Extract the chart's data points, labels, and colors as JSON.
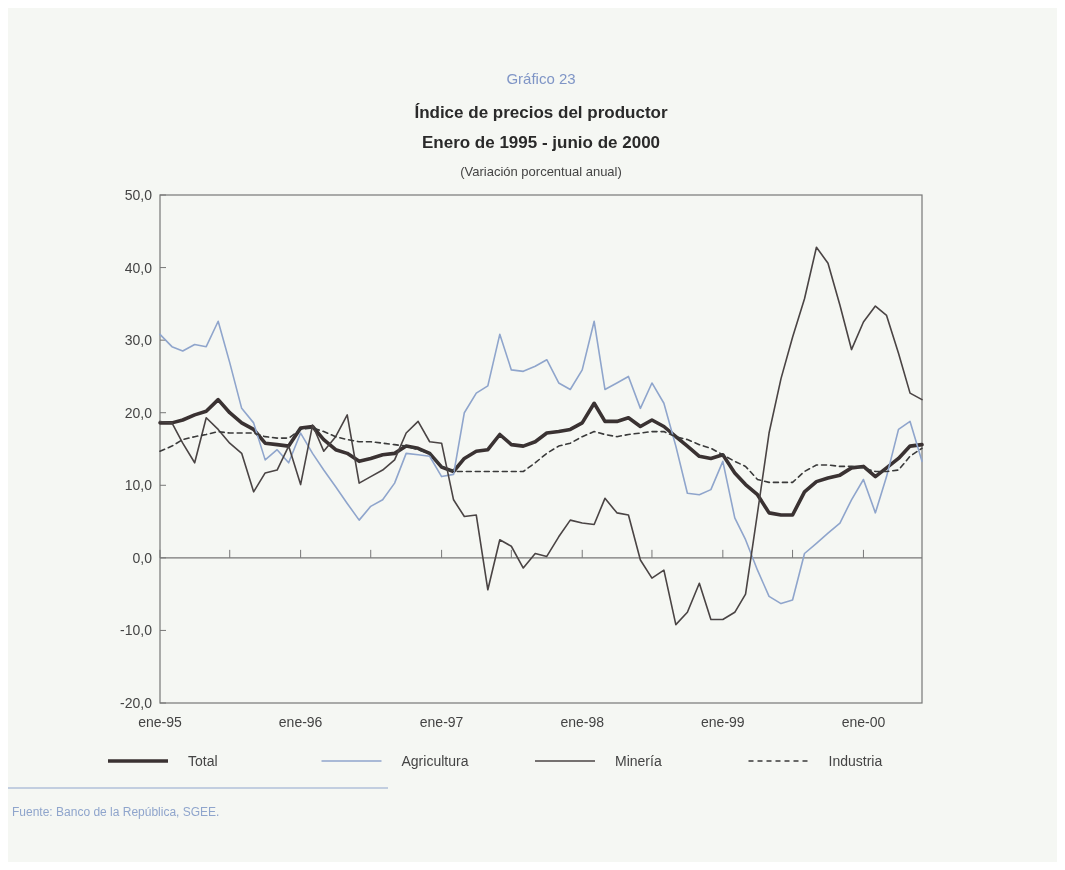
{
  "chart_data": {
    "type": "line",
    "title": "Índice de precios del productor",
    "subtitle": "Enero de 1995 - junio de 2000",
    "ylabel": "(Variación porcentual anual)",
    "annotations": [
      "Gráfico 23",
      "Fuente: Banco de la República, SGEE."
    ],
    "x": [
      "1995-01",
      "1995-02",
      "1995-03",
      "1995-04",
      "1995-05",
      "1995-06",
      "1995-07",
      "1995-08",
      "1995-09",
      "1995-10",
      "1995-11",
      "1995-12",
      "1996-01",
      "1996-02",
      "1996-03",
      "1996-04",
      "1996-05",
      "1996-06",
      "1996-07",
      "1996-08",
      "1996-09",
      "1996-10",
      "1996-11",
      "1996-12",
      "1997-01",
      "1997-02",
      "1997-03",
      "1997-04",
      "1997-05",
      "1997-06",
      "1997-07",
      "1997-08",
      "1997-09",
      "1997-10",
      "1997-11",
      "1997-12",
      "1998-01",
      "1998-02",
      "1998-03",
      "1998-04",
      "1998-05",
      "1998-06",
      "1998-07",
      "1998-08",
      "1998-09",
      "1998-10",
      "1998-11",
      "1998-12",
      "1999-01",
      "1999-02",
      "1999-03",
      "1999-04",
      "1999-05",
      "1999-06",
      "1999-07",
      "1999-08",
      "1999-09",
      "1999-10",
      "1999-11",
      "1999-12",
      "2000-01",
      "2000-02",
      "2000-03",
      "2000-04",
      "2000-05",
      "2000-06"
    ],
    "series": [
      {
        "name": "Total",
        "color": "#3a3232",
        "values": [
          18.6,
          18.6,
          19.0,
          19.7,
          20.2,
          21.8,
          20.0,
          18.6,
          17.7,
          15.8,
          15.6,
          15.4,
          17.9,
          18.1,
          16.3,
          14.9,
          14.4,
          13.3,
          13.7,
          14.2,
          14.4,
          15.4,
          15.1,
          14.4,
          12.5,
          11.9,
          13.7,
          14.7,
          14.9,
          17.0,
          15.6,
          15.4,
          16.0,
          17.2,
          17.4,
          17.7,
          18.6,
          21.3,
          18.8,
          18.8,
          19.3,
          18.1,
          19.0,
          18.1,
          16.7,
          15.4,
          14.0,
          13.7,
          14.2,
          11.7,
          10.1,
          8.7,
          6.2,
          5.9,
          5.9,
          9.1,
          10.5,
          11.0,
          11.4,
          12.4,
          12.6,
          11.2,
          12.4,
          13.7,
          15.4,
          15.6
        ]
      },
      {
        "name": "Agricultura",
        "color": "#8fa5cc",
        "values": [
          30.8,
          29.1,
          28.5,
          29.4,
          29.1,
          32.6,
          26.9,
          20.6,
          18.6,
          13.5,
          14.9,
          13.1,
          17.2,
          14.4,
          12.1,
          9.8,
          7.5,
          5.2,
          7.1,
          8.0,
          10.3,
          14.4,
          14.2,
          14.0,
          11.2,
          11.5,
          20.0,
          22.7,
          23.7,
          30.8,
          25.9,
          25.7,
          26.4,
          27.3,
          24.1,
          23.2,
          25.9,
          32.6,
          23.2,
          24.1,
          25.0,
          20.6,
          24.1,
          21.3,
          15.4,
          8.9,
          8.7,
          9.4,
          13.3,
          5.5,
          2.5,
          -1.7,
          -5.3,
          -6.3,
          -5.8,
          0.6,
          2.0,
          3.4,
          4.8,
          8.0,
          10.8,
          6.2,
          11.2,
          17.7,
          18.8,
          13.3
        ]
      },
      {
        "name": "Minería",
        "color": "#4a4444",
        "values": [
          18.8,
          18.6,
          15.8,
          13.1,
          19.3,
          17.7,
          15.8,
          14.4,
          9.1,
          11.7,
          12.1,
          15.4,
          10.1,
          18.3,
          14.7,
          16.7,
          19.7,
          10.3,
          11.2,
          12.1,
          13.5,
          17.2,
          18.8,
          16.0,
          15.8,
          8.0,
          5.7,
          5.9,
          -4.4,
          2.5,
          1.6,
          -1.4,
          0.6,
          0.2,
          2.9,
          5.2,
          4.8,
          4.6,
          8.2,
          6.2,
          5.9,
          -0.3,
          -2.8,
          -1.7,
          -9.2,
          -7.5,
          -3.5,
          -8.5,
          -8.5,
          -7.5,
          -5.0,
          6.2,
          17.2,
          24.7,
          30.4,
          35.7,
          42.8,
          40.6,
          34.8,
          28.7,
          32.5,
          34.7,
          33.4,
          28.2,
          22.7,
          21.8
        ]
      },
      {
        "name": "Industria",
        "color": "#3a3a3a",
        "line_style": "dashed",
        "values": [
          14.7,
          15.4,
          16.3,
          16.7,
          17.0,
          17.4,
          17.2,
          17.2,
          17.2,
          16.7,
          16.5,
          16.5,
          17.7,
          17.9,
          17.4,
          16.7,
          16.3,
          16.0,
          16.0,
          15.8,
          15.6,
          15.4,
          14.9,
          14.4,
          12.6,
          11.9,
          11.9,
          11.9,
          11.9,
          11.9,
          11.9,
          11.9,
          13.1,
          14.4,
          15.4,
          15.8,
          16.7,
          17.4,
          17.0,
          16.7,
          17.0,
          17.2,
          17.4,
          17.4,
          16.7,
          16.3,
          15.6,
          15.1,
          14.2,
          13.3,
          12.6,
          10.8,
          10.4,
          10.4,
          10.4,
          11.9,
          12.8,
          12.8,
          12.6,
          12.6,
          12.4,
          11.9,
          11.9,
          12.1,
          14.0,
          15.1
        ]
      }
    ],
    "xlim": [
      "1995-01",
      "2000-06"
    ],
    "xticks": [
      {
        "value": "1995-01",
        "label": "ene-95"
      },
      {
        "value": "1995-07",
        "label": null
      },
      {
        "value": "1996-01",
        "label": "ene-96"
      },
      {
        "value": "1996-07",
        "label": null
      },
      {
        "value": "1997-01",
        "label": "ene-97"
      },
      {
        "value": "1997-07",
        "label": null
      },
      {
        "value": "1998-01",
        "label": "ene-98"
      },
      {
        "value": "1998-07",
        "label": null
      },
      {
        "value": "1999-01",
        "label": "ene-99"
      },
      {
        "value": "1999-07",
        "label": null
      },
      {
        "value": "2000-01",
        "label": "ene-00"
      }
    ],
    "ylim": [
      -20,
      50
    ],
    "yticks": [
      {
        "value": -20,
        "label": "-20,0"
      },
      {
        "value": -10,
        "label": "-10,0"
      },
      {
        "value": 0,
        "label": "0,0"
      },
      {
        "value": 10,
        "label": "10,0"
      },
      {
        "value": 20,
        "label": "20,0"
      },
      {
        "value": 30,
        "label": "30,0"
      },
      {
        "value": 40,
        "label": "40,0"
      },
      {
        "value": 50,
        "label": "50,0"
      }
    ],
    "ref_lines": [
      {
        "axis": "y",
        "value": 0,
        "color": "#777777"
      }
    ],
    "legend": "bottom",
    "marker": "none"
  }
}
